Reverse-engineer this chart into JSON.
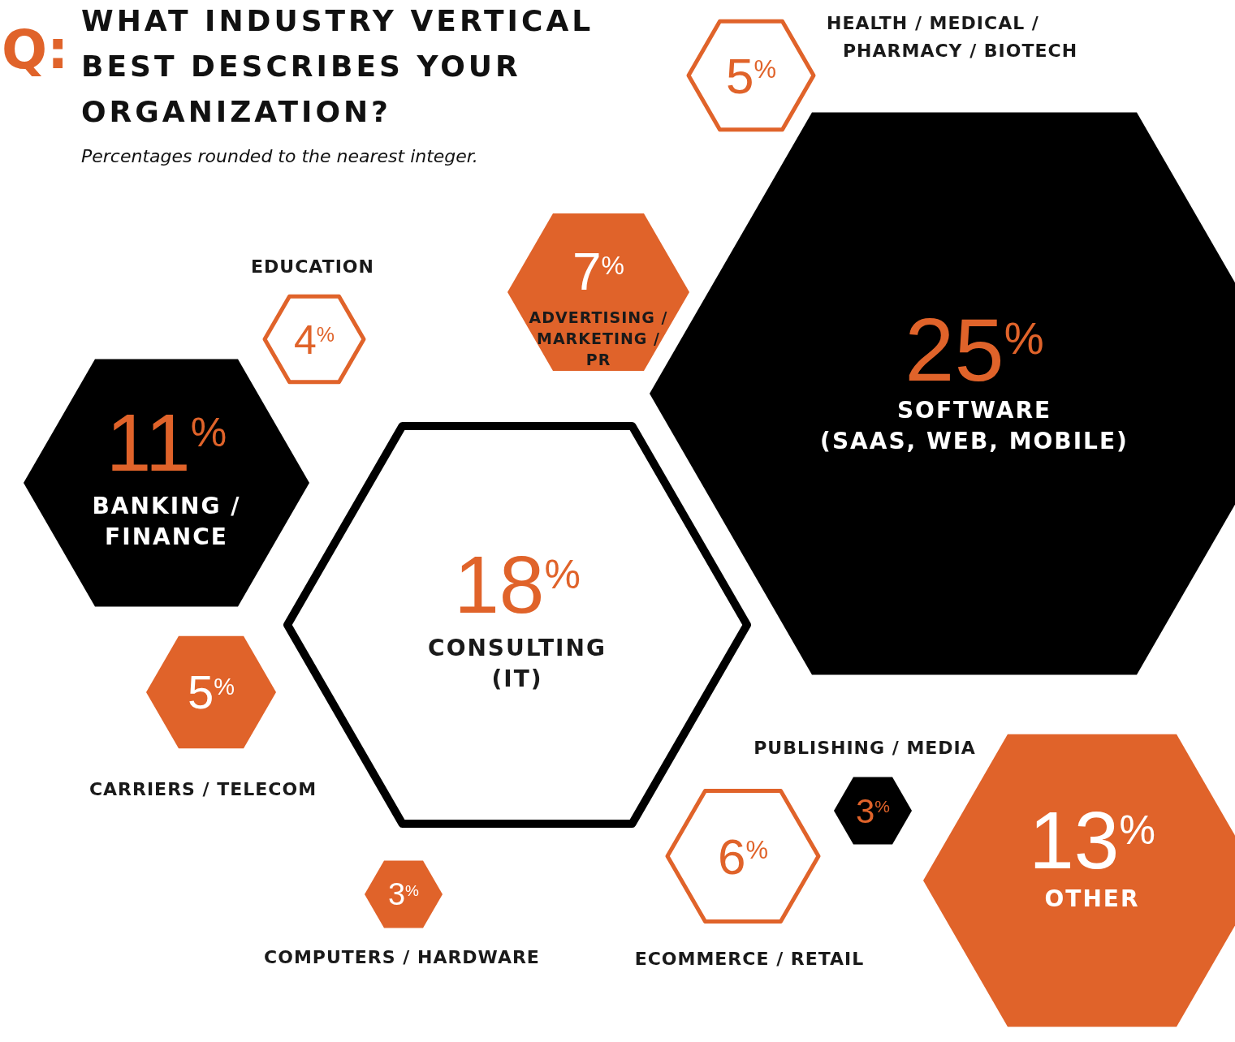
{
  "chart_data": {
    "type": "other",
    "title": "WHAT INDUSTRY VERTICAL BEST DESCRIBES YOUR ORGANIZATION?",
    "subtitle": "Percentages rounded to the nearest integer.",
    "annotations": [
      "Q:"
    ],
    "categories": [
      "HEALTH / MEDICAL /\nPHARMACY / BIOTECH",
      "EDUCATION",
      "ADVERTISING /\nMARKETING /\nPR",
      "SOFTWARE\n(SAAS, WEB, MOBILE)",
      "BANKING /\nFINANCE",
      "CONSULTING\n(IT)",
      "CARRIERS / TELECOM",
      "PUBLISHING / MEDIA",
      "ECOMMERCE / RETAIL",
      "OTHER",
      "COMPUTERS / HARDWARE"
    ],
    "series": [
      {
        "color": "#e0632a",
        "values": [
          null,
          null,
          7,
          null,
          null,
          null,
          5,
          null,
          null,
          13,
          3
        ],
        "value_labels": [
          null,
          null,
          "7$^{%}$",
          null,
          null,
          null,
          "5$^{%}$",
          null,
          null,
          "13$^{%}$",
          "3$^{%}$"
        ]
      },
      {
        "color": "#000000",
        "values": [
          null,
          null,
          null,
          25,
          11,
          null,
          null,
          3,
          null,
          null,
          null
        ],
        "value_labels": [
          null,
          null,
          null,
          "25$^{%}$",
          "11$^{%}$",
          null,
          null,
          "3$^{%}$",
          null,
          null,
          null
        ]
      },
      {
        "color": "#e0632a",
        "line_style": "solid",
        "values": [
          5,
          4,
          null,
          null,
          null,
          null,
          null,
          null,
          6,
          null,
          null
        ],
        "value_labels": [
          "5$^{%}$",
          "4$^{%}$",
          null,
          null,
          null,
          null,
          null,
          null,
          "6$^{%}$",
          null,
          null
        ]
      },
      {
        "color": "#000000",
        "line_style": "solid",
        "values": [
          null,
          null,
          null,
          null,
          null,
          18,
          null,
          null,
          null,
          null,
          null
        ],
        "value_labels": [
          null,
          null,
          null,
          null,
          null,
          "18$^{%}$",
          null,
          null,
          null,
          null,
          null
        ]
      }
    ]
  }
}
